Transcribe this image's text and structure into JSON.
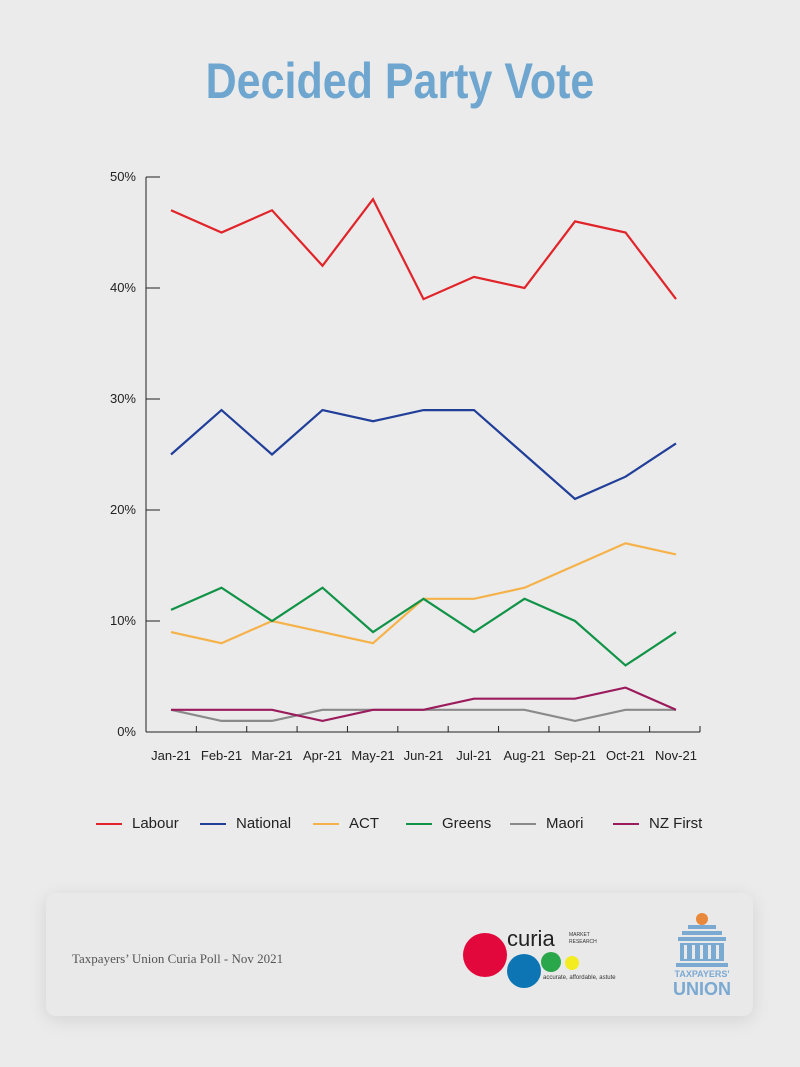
{
  "title": "Decided Party Vote",
  "footer": {
    "caption": "Taxpayers’ Union Curia Poll - Nov 2021",
    "curia_logo": {
      "wordmark": "curia",
      "tag1": "MARKET",
      "tag2": "RESEARCH",
      "tagline": "accurate, affordable, astute"
    },
    "tu_logo": {
      "line1": "TAXPAYERS'",
      "line2": "UNION"
    }
  },
  "colors": {
    "title": "#6ea6cf",
    "Labour": "#e0242a",
    "National": "#213f99",
    "ACT": "#f6b24a",
    "Greens": "#119347",
    "Maori": "#8a8a8a",
    "NZ First": "#9b1c5d"
  },
  "chart_data": {
    "type": "line",
    "categories": [
      "Jan-21",
      "Feb-21",
      "Mar-21",
      "Apr-21",
      "May-21",
      "Jun-21",
      "Jul-21",
      "Aug-21",
      "Sep-21",
      "Oct-21",
      "Nov-21"
    ],
    "yticks": [
      "0%",
      "10%",
      "20%",
      "30%",
      "40%",
      "50%"
    ],
    "ylim": [
      0,
      50
    ],
    "grid": false,
    "legend_position": "bottom",
    "series": [
      {
        "name": "Labour",
        "values": [
          47,
          45,
          47,
          42,
          48,
          39,
          41,
          40,
          46,
          45,
          39
        ]
      },
      {
        "name": "National",
        "values": [
          25,
          29,
          25,
          29,
          28,
          29,
          29,
          25,
          21,
          23,
          26
        ]
      },
      {
        "name": "ACT",
        "values": [
          9,
          8,
          10,
          9,
          8,
          12,
          12,
          13,
          15,
          17,
          16
        ]
      },
      {
        "name": "Greens",
        "values": [
          11,
          13,
          10,
          13,
          9,
          12,
          9,
          12,
          10,
          6,
          9
        ]
      },
      {
        "name": "Maori",
        "values": [
          2,
          1,
          1,
          2,
          2,
          2,
          2,
          2,
          1,
          2,
          2
        ]
      },
      {
        "name": "NZ First",
        "values": [
          2,
          2,
          2,
          1,
          2,
          2,
          3,
          3,
          3,
          4,
          2
        ]
      }
    ]
  }
}
